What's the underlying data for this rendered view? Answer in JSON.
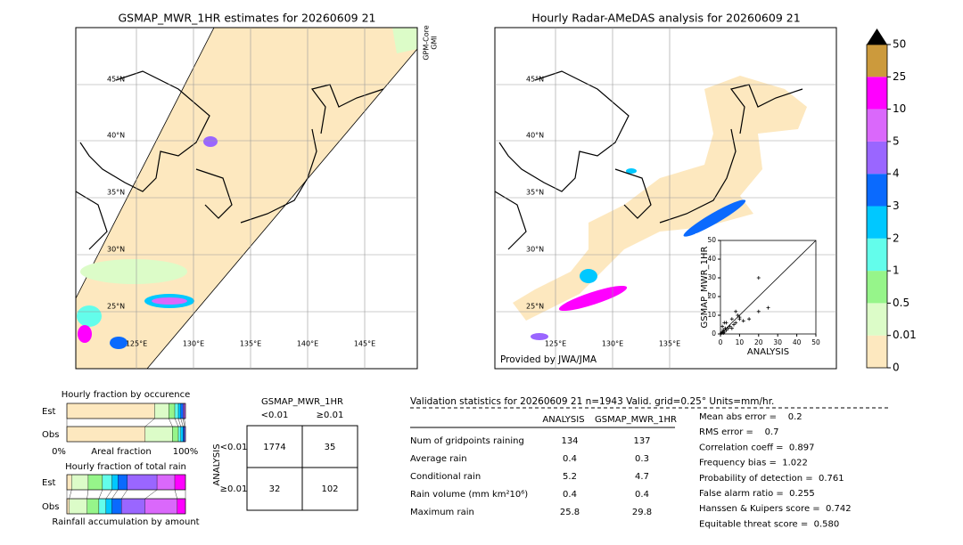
{
  "left_map": {
    "title": "GSMAP_MWR_1HR estimates for 20260609 21",
    "side_label": [
      "GPM-Core",
      "GMI"
    ],
    "lat_labels": [
      "45°N",
      "40°N",
      "35°N",
      "30°N",
      "25°N"
    ],
    "lon_labels": [
      "125°E",
      "130°E",
      "135°E",
      "140°E",
      "145°E"
    ]
  },
  "right_map": {
    "title": "Hourly Radar-AMeDAS analysis for 20260609 21",
    "lat_labels": [
      "45°N",
      "40°N",
      "35°N",
      "30°N",
      "25°N"
    ],
    "lon_labels": [
      "125°E",
      "130°E",
      "135°E"
    ],
    "credit": "Provided by JWA/JMA"
  },
  "colorbar": {
    "ticks": [
      0,
      0.01,
      0.5,
      1,
      2,
      3,
      4,
      5,
      10,
      25,
      50
    ],
    "colors": [
      "#fde8bf",
      "#dcfcc8",
      "#96f58a",
      "#63fdeb",
      "#00c8ff",
      "#0a6afe",
      "#9a66ff",
      "#da68fb",
      "#ff00ff",
      "#cc9a3c"
    ],
    "extend_color": "#000000"
  },
  "scatter": {
    "type": "scatter",
    "xlabel": "ANALYSIS",
    "ylabel": "GSMAP_MWR_1HR",
    "xlim": [
      0,
      50
    ],
    "ylim": [
      0,
      50
    ],
    "xticks": [
      0,
      10,
      20,
      30,
      40,
      50
    ],
    "yticks": [
      0,
      10,
      20,
      30,
      40,
      50
    ],
    "x": [
      0.5,
      1,
      1.5,
      2,
      2.5,
      3,
      1,
      2,
      4,
      5,
      6,
      7,
      8,
      9,
      10,
      12,
      15,
      20,
      25,
      20,
      3,
      6,
      8,
      10,
      1.5
    ],
    "y": [
      0.5,
      1,
      2,
      1,
      3,
      2,
      4,
      6,
      3,
      4,
      8,
      5,
      6,
      10,
      8,
      7,
      8,
      12,
      14,
      30,
      6,
      3,
      12,
      9,
      0.5
    ]
  },
  "occurrence": {
    "title": "Hourly fraction by occurence",
    "rows": [
      "Est",
      "Obs"
    ],
    "left": "0%",
    "xlabel": "Areal fraction",
    "right": "100%",
    "segments": [
      [
        74,
        12,
        5,
        3,
        2,
        2,
        1,
        1
      ],
      [
        66,
        23,
        5,
        2,
        2,
        1,
        1
      ]
    ]
  },
  "amount": {
    "title": "Hourly fraction of total rain",
    "rows": [
      "Est",
      "Obs"
    ],
    "xlabel": "Rainfall accumulation by amount",
    "segments": [
      [
        4,
        14,
        12,
        8,
        5,
        8,
        25,
        15,
        9
      ],
      [
        2,
        15,
        10,
        6,
        5,
        8,
        20,
        27,
        7
      ]
    ]
  },
  "contingency": {
    "title": "GSMAP_MWR_1HR",
    "col_headers": [
      "<0.01",
      "≥0.01"
    ],
    "row_axis": "ANALYSIS",
    "row_headers": [
      "<0.01",
      "≥0.01"
    ],
    "cells": [
      [
        1774,
        35
      ],
      [
        32,
        102
      ]
    ]
  },
  "validation": {
    "header": "Validation statistics for 20260609 21  n=1943 Valid. grid=0.25° Units=mm/hr.",
    "columns": [
      "ANALYSIS",
      "GSMAP_MWR_1HR"
    ],
    "rows": [
      {
        "label": "Num of gridpoints raining",
        "values": [
          134,
          137
        ]
      },
      {
        "label": "Average rain",
        "values": [
          0.4,
          0.3
        ]
      },
      {
        "label": "Conditional rain",
        "values": [
          5.2,
          4.7
        ]
      },
      {
        "label": "Rain volume (mm km²10⁶)",
        "values": [
          0.4,
          0.4
        ]
      },
      {
        "label": "Maximum rain",
        "values": [
          25.8,
          29.8
        ]
      }
    ],
    "scores": [
      "Mean abs error =    0.2",
      "RMS error =    0.7",
      "Correlation coeff =  0.897",
      "Frequency bias =  1.022",
      "Probability of detection =  0.761",
      "False alarm ratio =  0.255",
      "Hanssen & Kuipers score =  0.742",
      "Equitable threat score =  0.580"
    ]
  }
}
